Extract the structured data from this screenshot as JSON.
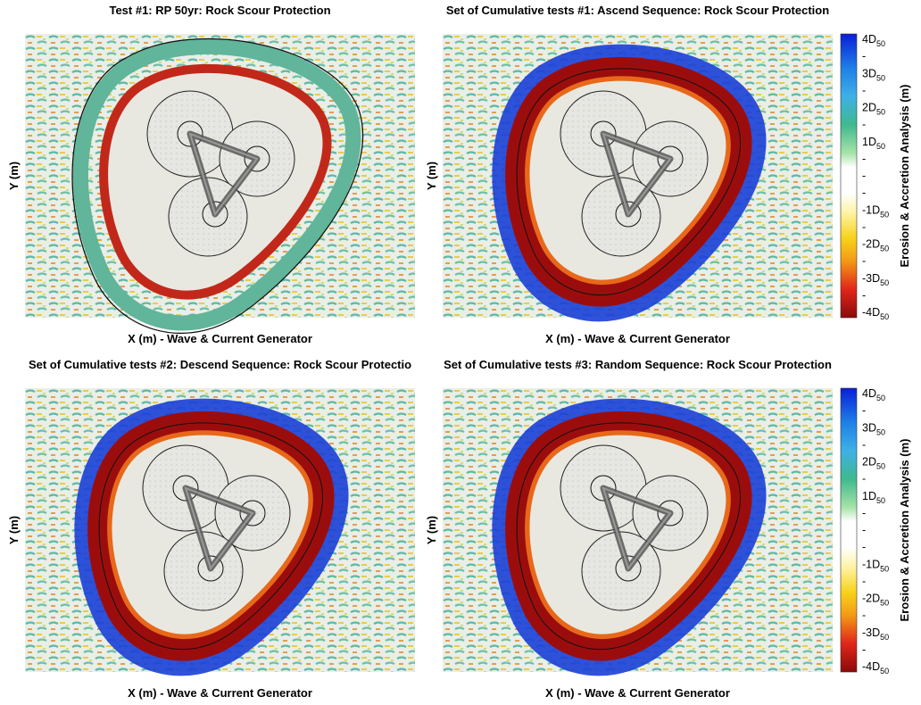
{
  "panels": [
    {
      "title": "Test #1: RP 50yr: Rock Scour Protection",
      "xlabel": "X (m) - Wave & Current Generator",
      "ylabel": "Y (m)"
    },
    {
      "title": "Set of Cumulative tests #1: Ascend Sequence: Rock Scour Protection",
      "xlabel": "X (m) - Wave & Current Generator",
      "ylabel": "Y (m)"
    },
    {
      "title": "Set of Cumulative tests #2: Descend Sequence: Rock Scour Protectio",
      "xlabel": "X (m) - Wave & Current Generator",
      "ylabel": "Y (m)"
    },
    {
      "title": "Set of Cumulative tests #3: Random Sequence: Rock Scour Protection",
      "xlabel": "X (m) - Wave & Current Generator",
      "ylabel": "Y (m)"
    }
  ],
  "colorbar": {
    "label": "Erosion & Accretion Analysis (m)",
    "ticks": [
      {
        "text": "4D",
        "sub": "50"
      },
      "-",
      {
        "text": "3D",
        "sub": "50"
      },
      "-",
      {
        "text": "2D",
        "sub": "50"
      },
      "-",
      {
        "text": "1D",
        "sub": "50"
      },
      "-",
      "-",
      "-",
      {
        "text": "-1D",
        "sub": "50"
      },
      "-",
      {
        "text": "-2D",
        "sub": "50"
      },
      "-",
      {
        "text": "-3D",
        "sub": "50"
      },
      "-",
      {
        "text": "-4D",
        "sub": "50"
      }
    ]
  }
}
